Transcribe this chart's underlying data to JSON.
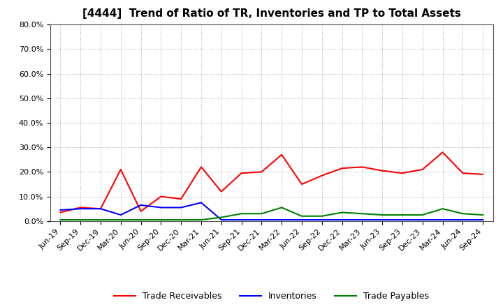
{
  "title": "[4444]  Trend of Ratio of TR, Inventories and TP to Total Assets",
  "labels": [
    "Jun-19",
    "Sep-19",
    "Dec-19",
    "Mar-20",
    "Jun-20",
    "Sep-20",
    "Dec-20",
    "Mar-21",
    "Jun-21",
    "Sep-21",
    "Dec-21",
    "Mar-22",
    "Jun-22",
    "Sep-22",
    "Dec-22",
    "Mar-23",
    "Jun-23",
    "Sep-23",
    "Dec-23",
    "Mar-24",
    "Jun-24",
    "Sep-24"
  ],
  "trade_receivables": [
    3.5,
    5.5,
    5.0,
    21.0,
    4.0,
    10.0,
    9.0,
    22.0,
    12.0,
    19.5,
    20.0,
    27.0,
    15.0,
    18.5,
    21.5,
    22.0,
    20.5,
    19.5,
    21.0,
    28.0,
    19.5,
    19.0
  ],
  "inventories": [
    4.5,
    5.0,
    5.0,
    2.5,
    6.5,
    5.5,
    5.5,
    7.5,
    0.5,
    0.5,
    0.5,
    0.5,
    0.5,
    0.5,
    0.5,
    0.5,
    0.5,
    0.5,
    0.5,
    0.5,
    0.5,
    0.5
  ],
  "trade_payables": [
    0.5,
    0.5,
    0.5,
    0.5,
    0.5,
    0.5,
    0.5,
    0.5,
    1.5,
    3.0,
    3.0,
    5.5,
    2.0,
    2.0,
    3.5,
    3.0,
    2.5,
    2.5,
    2.5,
    5.0,
    3.0,
    2.5
  ],
  "tr_color": "#FF0000",
  "inv_color": "#0000FF",
  "tp_color": "#008000",
  "ylim": [
    0,
    80
  ],
  "yticks": [
    0,
    10,
    20,
    30,
    40,
    50,
    60,
    70,
    80
  ],
  "background_color": "#FFFFFF",
  "grid_color": "#AAAAAA",
  "legend_labels": [
    "Trade Receivables",
    "Inventories",
    "Trade Payables"
  ],
  "title_fontsize": 11,
  "tick_fontsize": 8,
  "legend_fontsize": 9
}
